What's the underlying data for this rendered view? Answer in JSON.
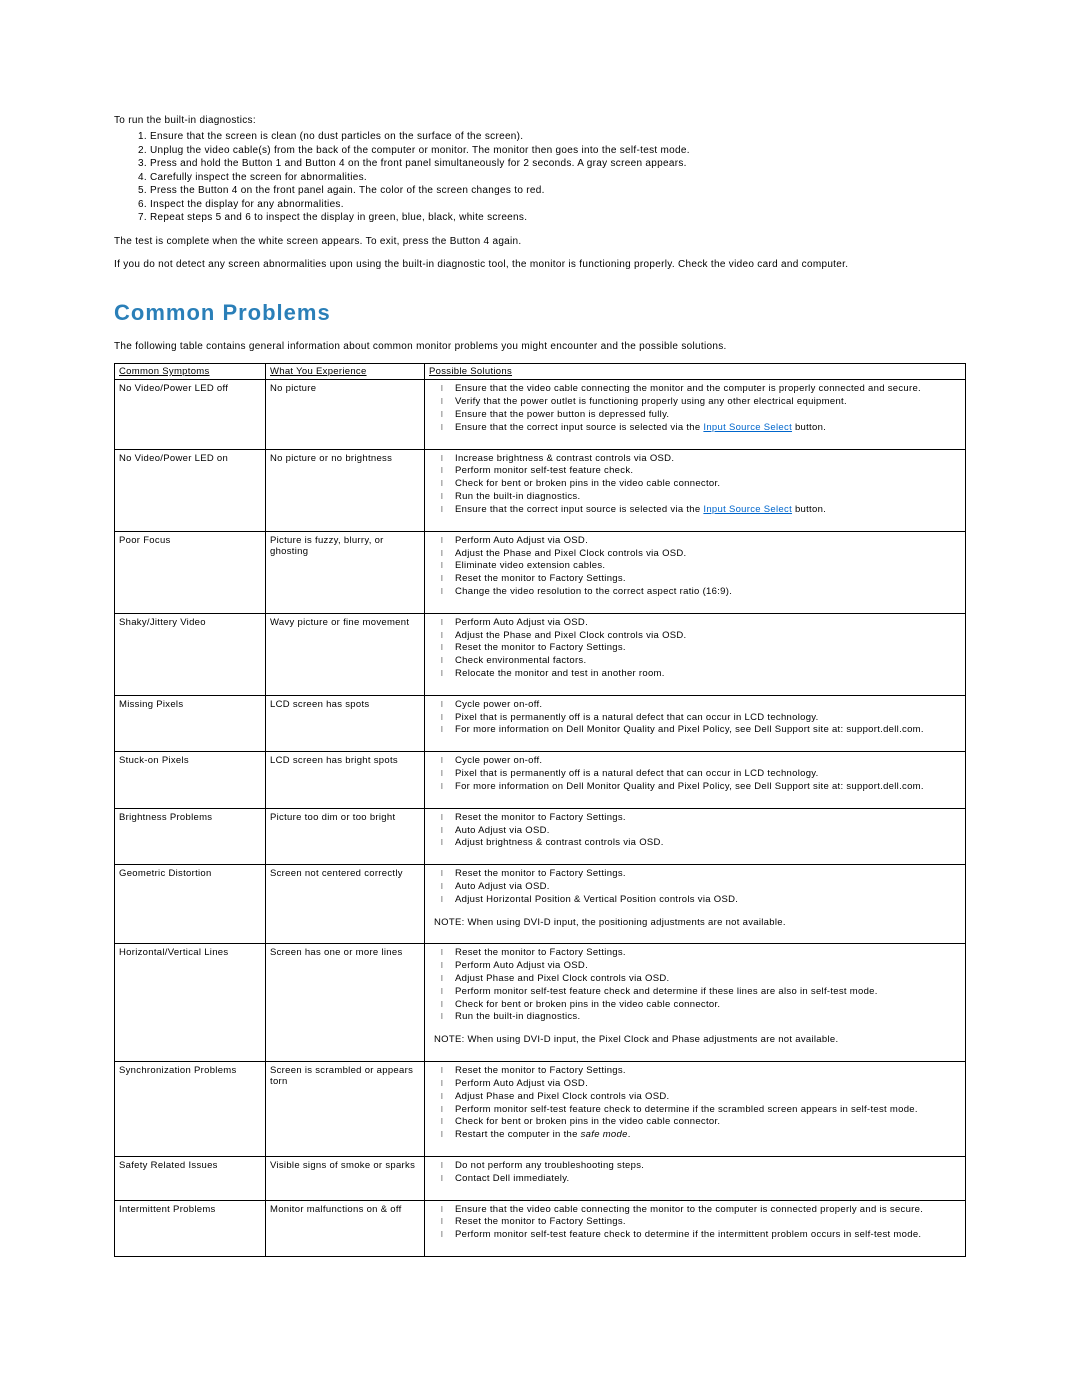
{
  "intro": "To run the built-in diagnostics:",
  "steps": [
    "Ensure that the screen is clean (no dust particles on the surface of the screen).",
    "Unplug the video cable(s) from the back of the computer or monitor. The monitor then goes into the self-test mode.",
    "Press and hold the Button 1 and Button 4 on the front panel simultaneously for 2 seconds. A gray screen appears.",
    "Carefully inspect the screen for abnormalities.",
    "Press the Button 4 on the front panel again. The color of the screen changes to red.",
    "Inspect the display for any abnormalities.",
    "Repeat steps 5 and 6 to inspect the display in green, blue, black, white screens."
  ],
  "para1": "The test is complete when the white screen appears. To exit, press the Button 4 again.",
  "para2": "If you do not detect any screen abnormalities upon using the built-in diagnostic tool, the monitor is functioning properly. Check the video card and computer.",
  "heading": "Common Problems",
  "table_intro": "The following table contains general information about common monitor problems you might encounter and the possible solutions.",
  "headers": {
    "c1": "Common Symptoms",
    "c2": "What You Experience",
    "c3": "Possible Solutions"
  },
  "link_text": "Input Source Select",
  "rows": [
    {
      "sym": "No Video/Power LED off",
      "exp": "No picture",
      "sol": [
        "Ensure that the video cable connecting the monitor and the computer is properly connected and secure.",
        "Verify that the power outlet is functioning properly using any other electrical equipment.",
        "Ensure that the power button is depressed fully.",
        {
          "pre": "Ensure that the correct input source is selected via the ",
          "link": true,
          "post": " button."
        }
      ]
    },
    {
      "sym": "No Video/Power LED on",
      "exp": "No picture or no brightness",
      "sol": [
        "Increase brightness & contrast controls via OSD.",
        "Perform monitor self-test feature check.",
        "Check for bent or broken pins in the video cable connector.",
        "Run the built-in diagnostics.",
        {
          "pre": "Ensure that the correct input source is selected via the ",
          "link": true,
          "post": " button."
        }
      ]
    },
    {
      "sym": "Poor Focus",
      "exp": "Picture is fuzzy, blurry, or ghosting",
      "sol": [
        "Perform Auto Adjust via OSD.",
        "Adjust the Phase and Pixel Clock controls via OSD.",
        "Eliminate video extension cables.",
        "Reset the monitor to Factory Settings.",
        "Change the video resolution to the correct aspect ratio (16:9)."
      ]
    },
    {
      "sym": "Shaky/Jittery Video",
      "exp": "Wavy picture or fine movement",
      "sol": [
        "Perform Auto Adjust via OSD.",
        "Adjust the Phase and Pixel Clock controls via OSD.",
        "Reset the monitor to Factory Settings.",
        "Check environmental factors.",
        "Relocate the monitor and test in another room."
      ]
    },
    {
      "sym": "Missing Pixels",
      "exp": "LCD screen has spots",
      "sol": [
        "Cycle power on-off.",
        "Pixel that is permanently off is a natural defect that can occur in LCD technology.",
        "For more information on Dell Monitor Quality and Pixel Policy, see Dell Support site at: support.dell.com."
      ]
    },
    {
      "sym": "Stuck-on Pixels",
      "exp": "LCD screen has bright spots",
      "sol": [
        "Cycle power on-off.",
        "Pixel that is permanently off is a natural defect that can occur in LCD technology.",
        "For more information on Dell Monitor Quality and Pixel Policy, see Dell Support site at: support.dell.com."
      ]
    },
    {
      "sym": "Brightness Problems",
      "exp": "Picture too dim or too bright",
      "sol": [
        "Reset the monitor to Factory Settings.",
        "Auto Adjust via OSD.",
        "Adjust brightness & contrast controls via OSD."
      ]
    },
    {
      "sym": "Geometric Distortion",
      "exp": "Screen not centered correctly",
      "sol": [
        "Reset the monitor to Factory Settings.",
        "Auto Adjust via OSD.",
        "Adjust Horizontal Position & Vertical Position controls via OSD."
      ],
      "note": "NOTE: When using DVI-D input, the positioning adjustments are not available."
    },
    {
      "sym": "Horizontal/Vertical Lines",
      "exp": "Screen has one or more lines",
      "sol": [
        "Reset the monitor to Factory Settings.",
        "Perform Auto Adjust via OSD.",
        "Adjust Phase and Pixel Clock controls via OSD.",
        "Perform monitor self-test feature check and determine if these lines are also in self-test mode.",
        "Check for bent or broken pins in the video cable connector.",
        "Run the built-in diagnostics."
      ],
      "note": "NOTE: When using DVI-D input, the Pixel Clock and Phase adjustments are not available."
    },
    {
      "sym": "Synchronization Problems",
      "exp": "Screen is scrambled or appears torn",
      "sol": [
        "Reset the monitor to Factory Settings.",
        "Perform Auto Adjust via OSD.",
        "Adjust Phase and Pixel Clock controls via OSD.",
        "Perform monitor self-test feature check to determine if the scrambled screen appears in self-test mode.",
        "Check for bent or broken pins in the video cable connector.",
        {
          "safe": true,
          "pre": "Restart the computer in the ",
          "mid": "safe mode",
          "post": "."
        }
      ]
    },
    {
      "sym": "Safety Related Issues",
      "exp": "Visible signs of smoke or sparks",
      "sol": [
        "Do not perform any troubleshooting steps.",
        "Contact Dell immediately."
      ]
    },
    {
      "sym": "Intermittent Problems",
      "exp": "Monitor malfunctions on & off",
      "sol": [
        "Ensure that the video cable connecting the monitor to the computer is connected properly and is secure.",
        "Reset the monitor to Factory Settings.",
        "Perform monitor self-test feature check to determine if the intermittent problem occurs in self-test mode."
      ]
    }
  ]
}
